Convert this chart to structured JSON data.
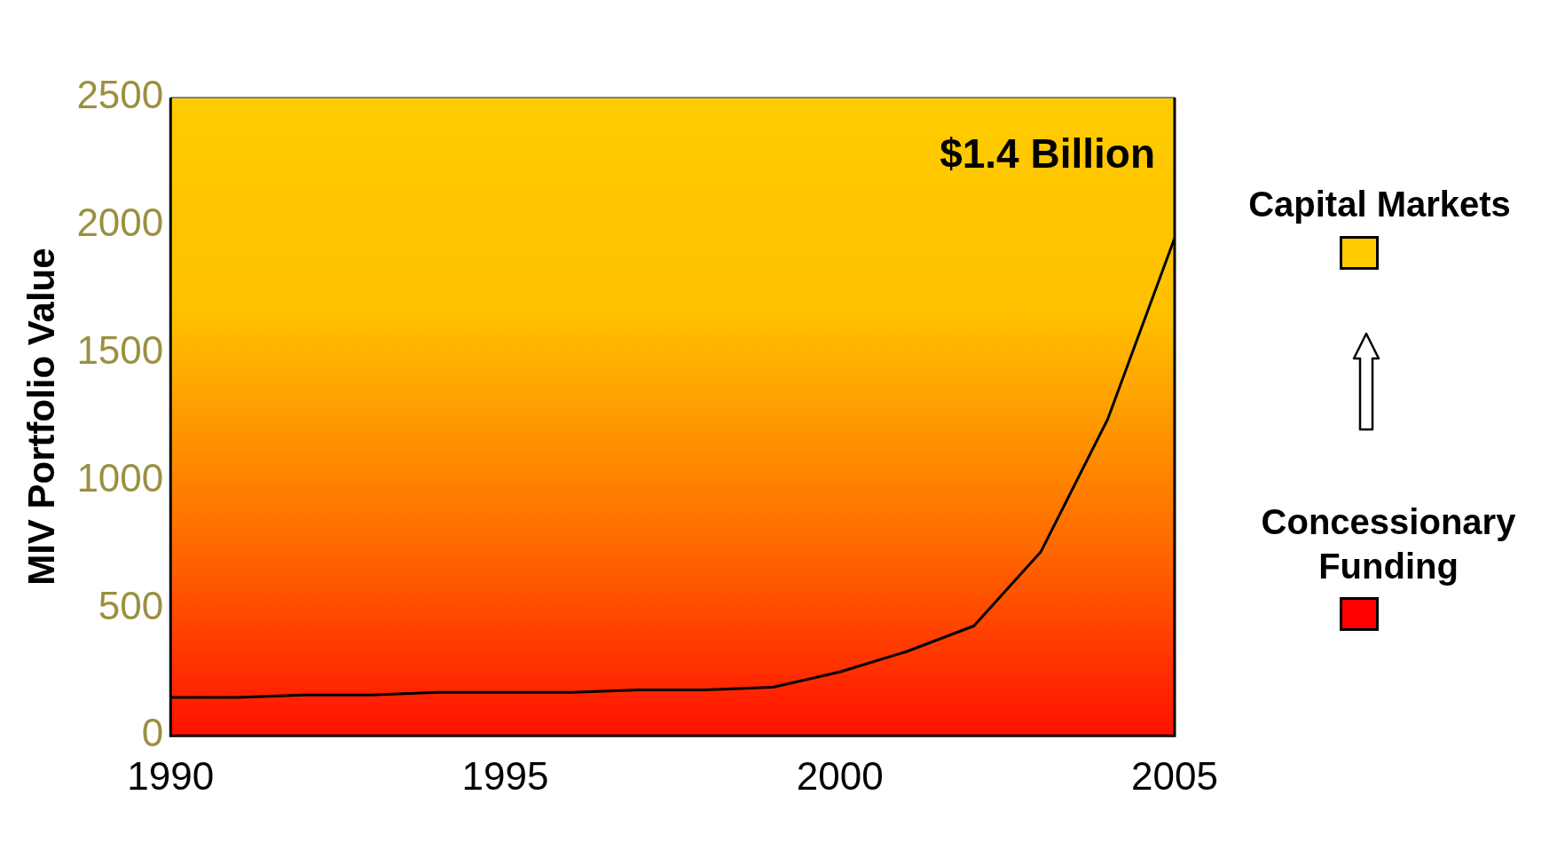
{
  "chart_data": {
    "type": "line",
    "ylabel": "MIV Portfolio Value",
    "x": [
      1990,
      1991,
      1992,
      1993,
      1994,
      1995,
      1996,
      1997,
      1998,
      1999,
      2000,
      2001,
      2002,
      2003,
      2004,
      2005
    ],
    "series": [
      {
        "color": "#000000",
        "values": [
          150,
          150,
          160,
          160,
          170,
          170,
          170,
          180,
          180,
          190,
          250,
          330,
          430,
          720,
          1240,
          1950
        ]
      }
    ],
    "xlim": [
      1990,
      2005
    ],
    "xticks": [
      1990,
      1995,
      2000,
      2005
    ],
    "ylim": [
      0,
      2500
    ],
    "yticks": [
      0,
      500,
      1000,
      1500,
      2000,
      2500
    ],
    "grid": false,
    "legend": false,
    "annotations": [
      "$1.4 Billion",
      "Capital Markets",
      "Concessionary Funding"
    ]
  }
}
